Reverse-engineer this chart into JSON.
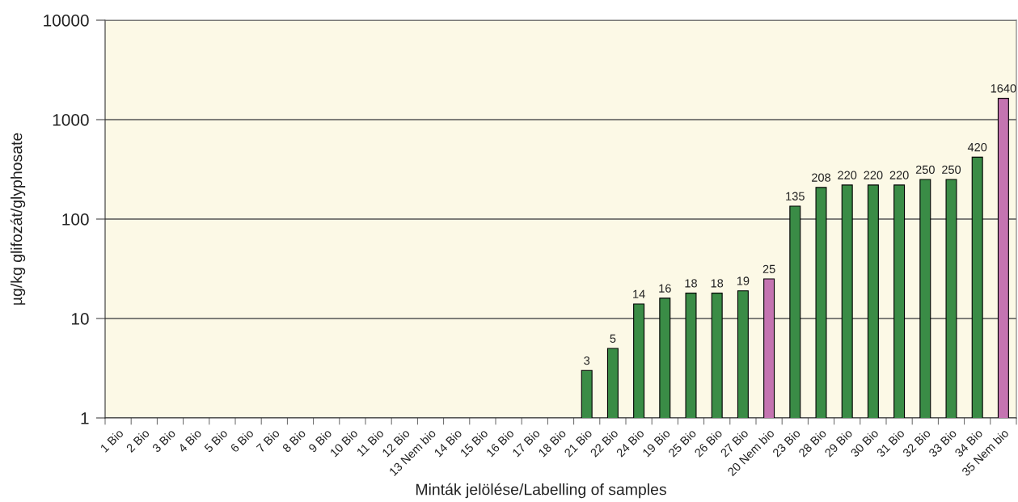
{
  "chart_data": {
    "type": "bar",
    "xlabel": "Minták jelölése/Labelling of samples",
    "ylabel": "µg/kg glifozát/glyphosate",
    "categories": [
      "1 Bio",
      "2 Bio",
      "3 Bio",
      "4 Bio",
      "5 Bio",
      "6 Bio",
      "7 Bio",
      "8 Bio",
      "9 Bio",
      "10 Bio",
      "11 Bio",
      "12 Bio",
      "13 Nem bio",
      "14 Bio",
      "15 Bio",
      "16 Bio",
      "17 Bio",
      "18 Bio",
      "21 Bio",
      "22 Bio",
      "24 Bio",
      "19 Bio",
      "25 Bio",
      "26 Bio",
      "27 Bio",
      "20 Nem bio",
      "23 Bio",
      "28 Bio",
      "29 Bio",
      "30 Bio",
      "31 Bio",
      "32 Bio",
      "33 Bio",
      "34 Bio",
      "35 Nem bio"
    ],
    "values": [
      null,
      null,
      null,
      null,
      null,
      null,
      null,
      null,
      null,
      null,
      null,
      null,
      null,
      null,
      null,
      null,
      null,
      null,
      3,
      5,
      14,
      16,
      18,
      18,
      19,
      25,
      135,
      208,
      220,
      220,
      220,
      250,
      250,
      420,
      1640
    ],
    "colors": [
      "#3a8c46",
      "#3a8c46",
      "#3a8c46",
      "#3a8c46",
      "#3a8c46",
      "#3a8c46",
      "#3a8c46",
      "#3a8c46",
      "#3a8c46",
      "#3a8c46",
      "#3a8c46",
      "#3a8c46",
      "#c474b1",
      "#3a8c46",
      "#3a8c46",
      "#3a8c46",
      "#3a8c46",
      "#3a8c46",
      "#3a8c46",
      "#3a8c46",
      "#3a8c46",
      "#3a8c46",
      "#3a8c46",
      "#3a8c46",
      "#3a8c46",
      "#c474b1",
      "#3a8c46",
      "#3a8c46",
      "#3a8c46",
      "#3a8c46",
      "#3a8c46",
      "#3a8c46",
      "#3a8c46",
      "#3a8c46",
      "#c474b1"
    ],
    "log": true,
    "ylim": [
      1,
      10000
    ],
    "yticks": [
      1,
      10,
      100,
      1000,
      10000
    ],
    "grid": "y",
    "data_labels": true
  }
}
